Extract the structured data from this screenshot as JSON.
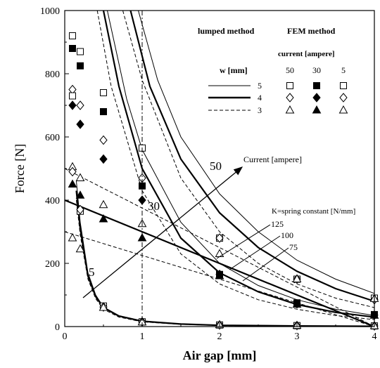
{
  "chart_data": {
    "type": "line",
    "xlabel": "Air gap [mm]",
    "ylabel": "Force [N]",
    "xlim": [
      0,
      4
    ],
    "ylim": [
      0,
      1000
    ],
    "xticks": [
      "0",
      "1",
      "2",
      "3",
      "4"
    ],
    "yticks": [
      "0",
      "200",
      "400",
      "600",
      "800",
      "1000"
    ],
    "grid": false,
    "legend": {
      "placement": "top-right",
      "header_lumped": "lumped method",
      "header_fem": "FEM method",
      "current_header": "current [ampere]",
      "w_header": "w [mm]",
      "currents": [
        "50",
        "30",
        "5"
      ],
      "rows": [
        {
          "w": "5",
          "line": "thin",
          "marker": "square"
        },
        {
          "w": "4",
          "line": "thick",
          "marker": "diamond"
        },
        {
          "w": "3",
          "line": "dashed",
          "marker": "triangle"
        }
      ]
    },
    "annotations": {
      "current_arrow": "Current [ampere]",
      "label_50": "50",
      "label_30": "30",
      "label_5": "5",
      "spring_header": "K=spring constant [N/mm]",
      "spring_values": [
        "125",
        "100",
        "75"
      ]
    },
    "lumped_curves": [
      {
        "current": 50,
        "w": 5,
        "style": "thin",
        "points": [
          [
            0.95,
            1000
          ],
          [
            1.2,
            780
          ],
          [
            1.5,
            600
          ],
          [
            2,
            420
          ],
          [
            2.5,
            300
          ],
          [
            3,
            210
          ],
          [
            3.5,
            150
          ],
          [
            4,
            105
          ]
        ]
      },
      {
        "current": 50,
        "w": 4,
        "style": "thick",
        "points": [
          [
            0.85,
            1000
          ],
          [
            1.1,
            760
          ],
          [
            1.5,
            530
          ],
          [
            2,
            360
          ],
          [
            2.5,
            250
          ],
          [
            3,
            175
          ],
          [
            3.5,
            120
          ],
          [
            4,
            80
          ]
        ]
      },
      {
        "current": 50,
        "w": 3,
        "style": "dashed",
        "points": [
          [
            0.75,
            1000
          ],
          [
            1,
            780
          ],
          [
            1.5,
            470
          ],
          [
            2,
            300
          ],
          [
            2.5,
            200
          ],
          [
            3,
            135
          ],
          [
            3.5,
            90
          ],
          [
            4,
            60
          ]
        ]
      },
      {
        "current": 30,
        "w": 5,
        "style": "thin",
        "points": [
          [
            0.55,
            1000
          ],
          [
            0.8,
            720
          ],
          [
            1,
            560
          ],
          [
            1.5,
            330
          ],
          [
            2,
            200
          ],
          [
            2.5,
            130
          ],
          [
            3,
            85
          ],
          [
            3.5,
            55
          ],
          [
            4,
            35
          ]
        ]
      },
      {
        "current": 30,
        "w": 4,
        "style": "thick",
        "points": [
          [
            0.5,
            1000
          ],
          [
            0.7,
            760
          ],
          [
            1,
            500
          ],
          [
            1.5,
            280
          ],
          [
            2,
            170
          ],
          [
            2.5,
            110
          ],
          [
            3,
            70
          ],
          [
            3.5,
            45
          ],
          [
            4,
            30
          ]
        ]
      },
      {
        "current": 30,
        "w": 3,
        "style": "dashed",
        "points": [
          [
            0.42,
            1000
          ],
          [
            0.6,
            760
          ],
          [
            1,
            430
          ],
          [
            1.5,
            230
          ],
          [
            2,
            135
          ],
          [
            2.5,
            85
          ],
          [
            3,
            55
          ],
          [
            3.5,
            35
          ],
          [
            4,
            22
          ]
        ]
      },
      {
        "current": 5,
        "w": 5,
        "style": "thin",
        "points": [
          [
            0.15,
            460
          ],
          [
            0.2,
            330
          ],
          [
            0.3,
            170
          ],
          [
            0.4,
            100
          ],
          [
            0.5,
            62
          ],
          [
            0.7,
            35
          ],
          [
            1,
            18
          ],
          [
            1.5,
            8
          ],
          [
            2,
            4
          ],
          [
            3,
            2
          ],
          [
            4,
            1
          ]
        ]
      },
      {
        "current": 5,
        "w": 4,
        "style": "thick",
        "points": [
          [
            0.15,
            430
          ],
          [
            0.2,
            310
          ],
          [
            0.3,
            160
          ],
          [
            0.4,
            95
          ],
          [
            0.5,
            60
          ],
          [
            0.7,
            33
          ],
          [
            1,
            17
          ],
          [
            1.5,
            8
          ],
          [
            2,
            4
          ],
          [
            3,
            2
          ],
          [
            4,
            1
          ]
        ]
      },
      {
        "current": 5,
        "w": 3,
        "style": "dashed",
        "points": [
          [
            0.15,
            400
          ],
          [
            0.2,
            290
          ],
          [
            0.3,
            150
          ],
          [
            0.4,
            88
          ],
          [
            0.5,
            55
          ],
          [
            0.7,
            30
          ],
          [
            1,
            15
          ],
          [
            1.5,
            7
          ],
          [
            2,
            3
          ],
          [
            3,
            1
          ],
          [
            4,
            1
          ]
        ]
      }
    ],
    "spring_lines": [
      {
        "k": "125",
        "style": "dashed",
        "points": [
          [
            0,
            500
          ],
          [
            4,
            0
          ]
        ]
      },
      {
        "k": "100",
        "style": "thick",
        "points": [
          [
            0,
            400
          ],
          [
            4,
            0
          ]
        ]
      },
      {
        "k": "75",
        "style": "dashed",
        "points": [
          [
            0,
            300
          ],
          [
            4,
            0
          ]
        ]
      }
    ],
    "fem_markers": [
      {
        "current": 50,
        "w": 5,
        "marker": "square",
        "filled": false,
        "points": [
          [
            0.1,
            920
          ],
          [
            0.2,
            870
          ],
          [
            0.5,
            740
          ],
          [
            1,
            565
          ],
          [
            2,
            280
          ],
          [
            3,
            150
          ],
          [
            4,
            90
          ]
        ]
      },
      {
        "current": 50,
        "w": 4,
        "marker": "diamond",
        "filled": false,
        "points": [
          [
            0.1,
            750
          ],
          [
            0.2,
            700
          ],
          [
            0.5,
            590
          ],
          [
            1,
            470
          ],
          [
            2,
            280
          ],
          [
            3,
            150
          ],
          [
            4,
            85
          ]
        ]
      },
      {
        "current": 50,
        "w": 3,
        "marker": "triangle",
        "filled": false,
        "points": [
          [
            0.1,
            505
          ],
          [
            0.2,
            470
          ],
          [
            0.5,
            385
          ],
          [
            1,
            325
          ],
          [
            2,
            230
          ],
          [
            3,
            150
          ],
          [
            4,
            88
          ]
        ]
      },
      {
        "current": 30,
        "w": 5,
        "marker": "square",
        "filled": true,
        "points": [
          [
            0.1,
            880
          ],
          [
            0.2,
            825
          ],
          [
            0.5,
            680
          ],
          [
            1,
            445
          ],
          [
            2,
            165
          ],
          [
            3,
            75
          ],
          [
            4,
            38
          ]
        ]
      },
      {
        "current": 30,
        "w": 4,
        "marker": "diamond",
        "filled": true,
        "points": [
          [
            0.1,
            700
          ],
          [
            0.2,
            640
          ],
          [
            0.5,
            530
          ],
          [
            1,
            400
          ],
          [
            2,
            165
          ],
          [
            3,
            72
          ],
          [
            4,
            36
          ]
        ]
      },
      {
        "current": 30,
        "w": 3,
        "marker": "triangle",
        "filled": true,
        "points": [
          [
            0.1,
            450
          ],
          [
            0.2,
            415
          ],
          [
            0.5,
            340
          ],
          [
            1,
            280
          ],
          [
            2,
            160
          ],
          [
            3,
            70
          ],
          [
            4,
            35
          ]
        ]
      },
      {
        "current": 5,
        "w": 5,
        "marker": "square",
        "filled": false,
        "points": [
          [
            0.1,
            730
          ],
          [
            0.2,
            365
          ],
          [
            0.5,
            65
          ],
          [
            1,
            15
          ],
          [
            2,
            5
          ],
          [
            3,
            3
          ],
          [
            4,
            2
          ]
        ]
      },
      {
        "current": 5,
        "w": 4,
        "marker": "diamond",
        "filled": false,
        "points": [
          [
            0.1,
            490
          ],
          [
            0.2,
            370
          ],
          [
            0.5,
            62
          ],
          [
            1,
            15
          ],
          [
            2,
            5
          ],
          [
            3,
            3
          ],
          [
            4,
            2
          ]
        ]
      },
      {
        "current": 5,
        "w": 3,
        "marker": "triangle",
        "filled": false,
        "points": [
          [
            0.1,
            280
          ],
          [
            0.2,
            245
          ],
          [
            0.5,
            60
          ],
          [
            1,
            14
          ],
          [
            2,
            5
          ],
          [
            3,
            3
          ],
          [
            4,
            2
          ]
        ]
      }
    ]
  }
}
